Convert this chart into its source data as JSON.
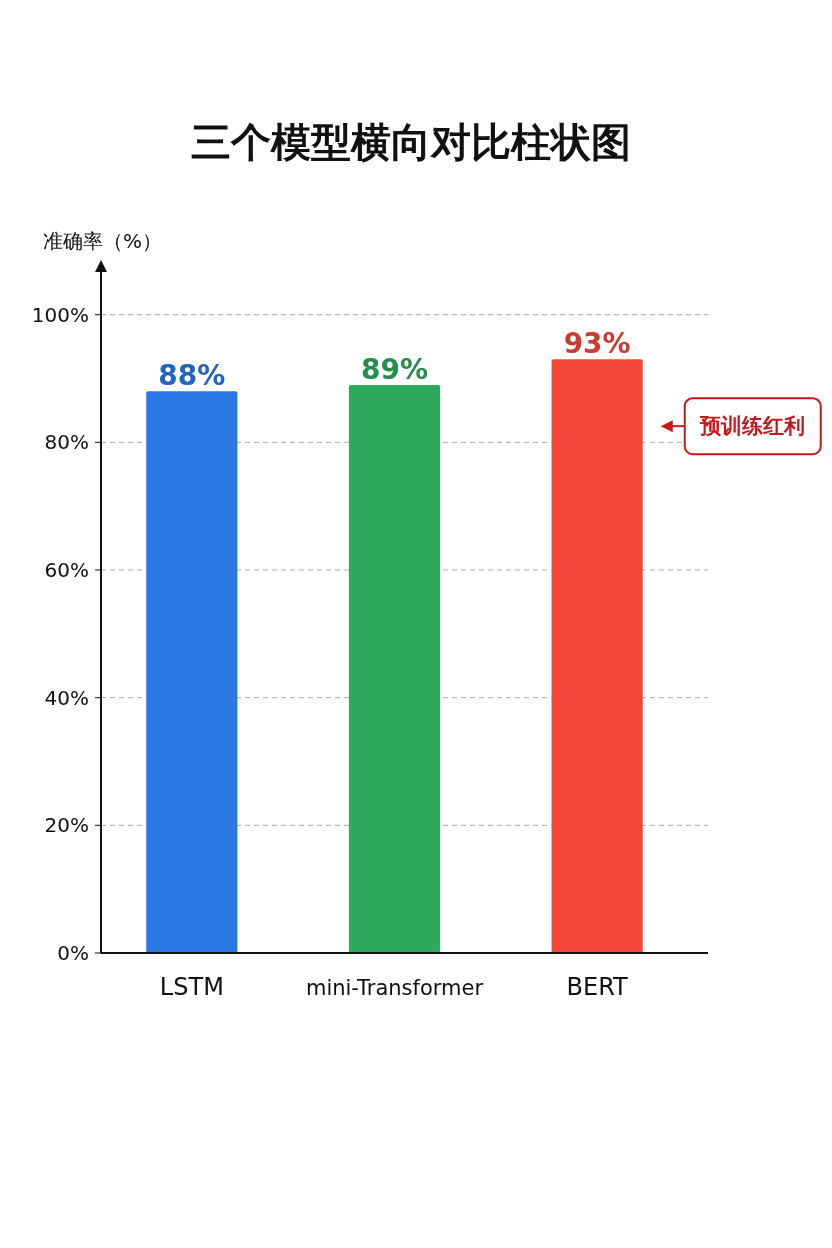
{
  "chart_data": {
    "type": "bar",
    "title": "三个模型横向对比柱状图",
    "ylabel": "准确率（%）",
    "categories": [
      "LSTM",
      "mini-Transformer",
      "BERT"
    ],
    "values": [
      88,
      89,
      93
    ],
    "colors": [
      "#2a78e4",
      "#2eaa5c",
      "#f2463a"
    ],
    "value_labels": [
      "88%",
      "89%",
      "93%"
    ],
    "ylim": [
      0,
      107
    ],
    "yticks": [
      {
        "value": 0,
        "label": "0%"
      },
      {
        "value": 20,
        "label": "20%"
      },
      {
        "value": 40,
        "label": "40%"
      },
      {
        "value": 60,
        "label": "60%"
      },
      {
        "value": 80,
        "label": "80%"
      },
      {
        "value": 100,
        "label": "100%"
      }
    ],
    "grid": "y",
    "annotations": [
      "预训练红利"
    ]
  }
}
